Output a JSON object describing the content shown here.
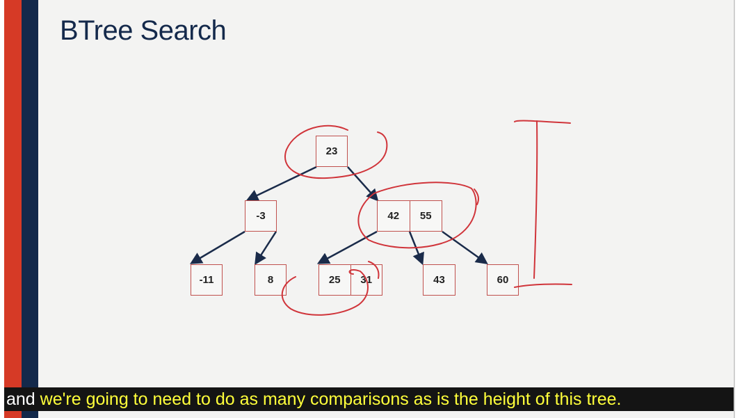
{
  "slide": {
    "title": "BTree Search"
  },
  "tree": {
    "root": {
      "keys": [
        "23"
      ]
    },
    "level1": [
      {
        "keys": [
          "-3"
        ]
      },
      {
        "keys": [
          "42",
          "55"
        ]
      }
    ],
    "leaves": [
      {
        "keys": [
          "-11"
        ]
      },
      {
        "keys": [
          "8"
        ]
      },
      {
        "keys": [
          "25",
          "31"
        ]
      },
      {
        "keys": [
          "43"
        ]
      },
      {
        "keys": [
          "60"
        ]
      }
    ]
  },
  "colors": {
    "node_border": "#c0504d",
    "edge": "#1a2b4a",
    "ink": "#d0343a",
    "title": "#14294b",
    "caption_highlight": "#ffff3a"
  },
  "caption": {
    "plain": "and",
    "highlighted": " we're going to need to do as many comparisons as is the height of this tree."
  }
}
